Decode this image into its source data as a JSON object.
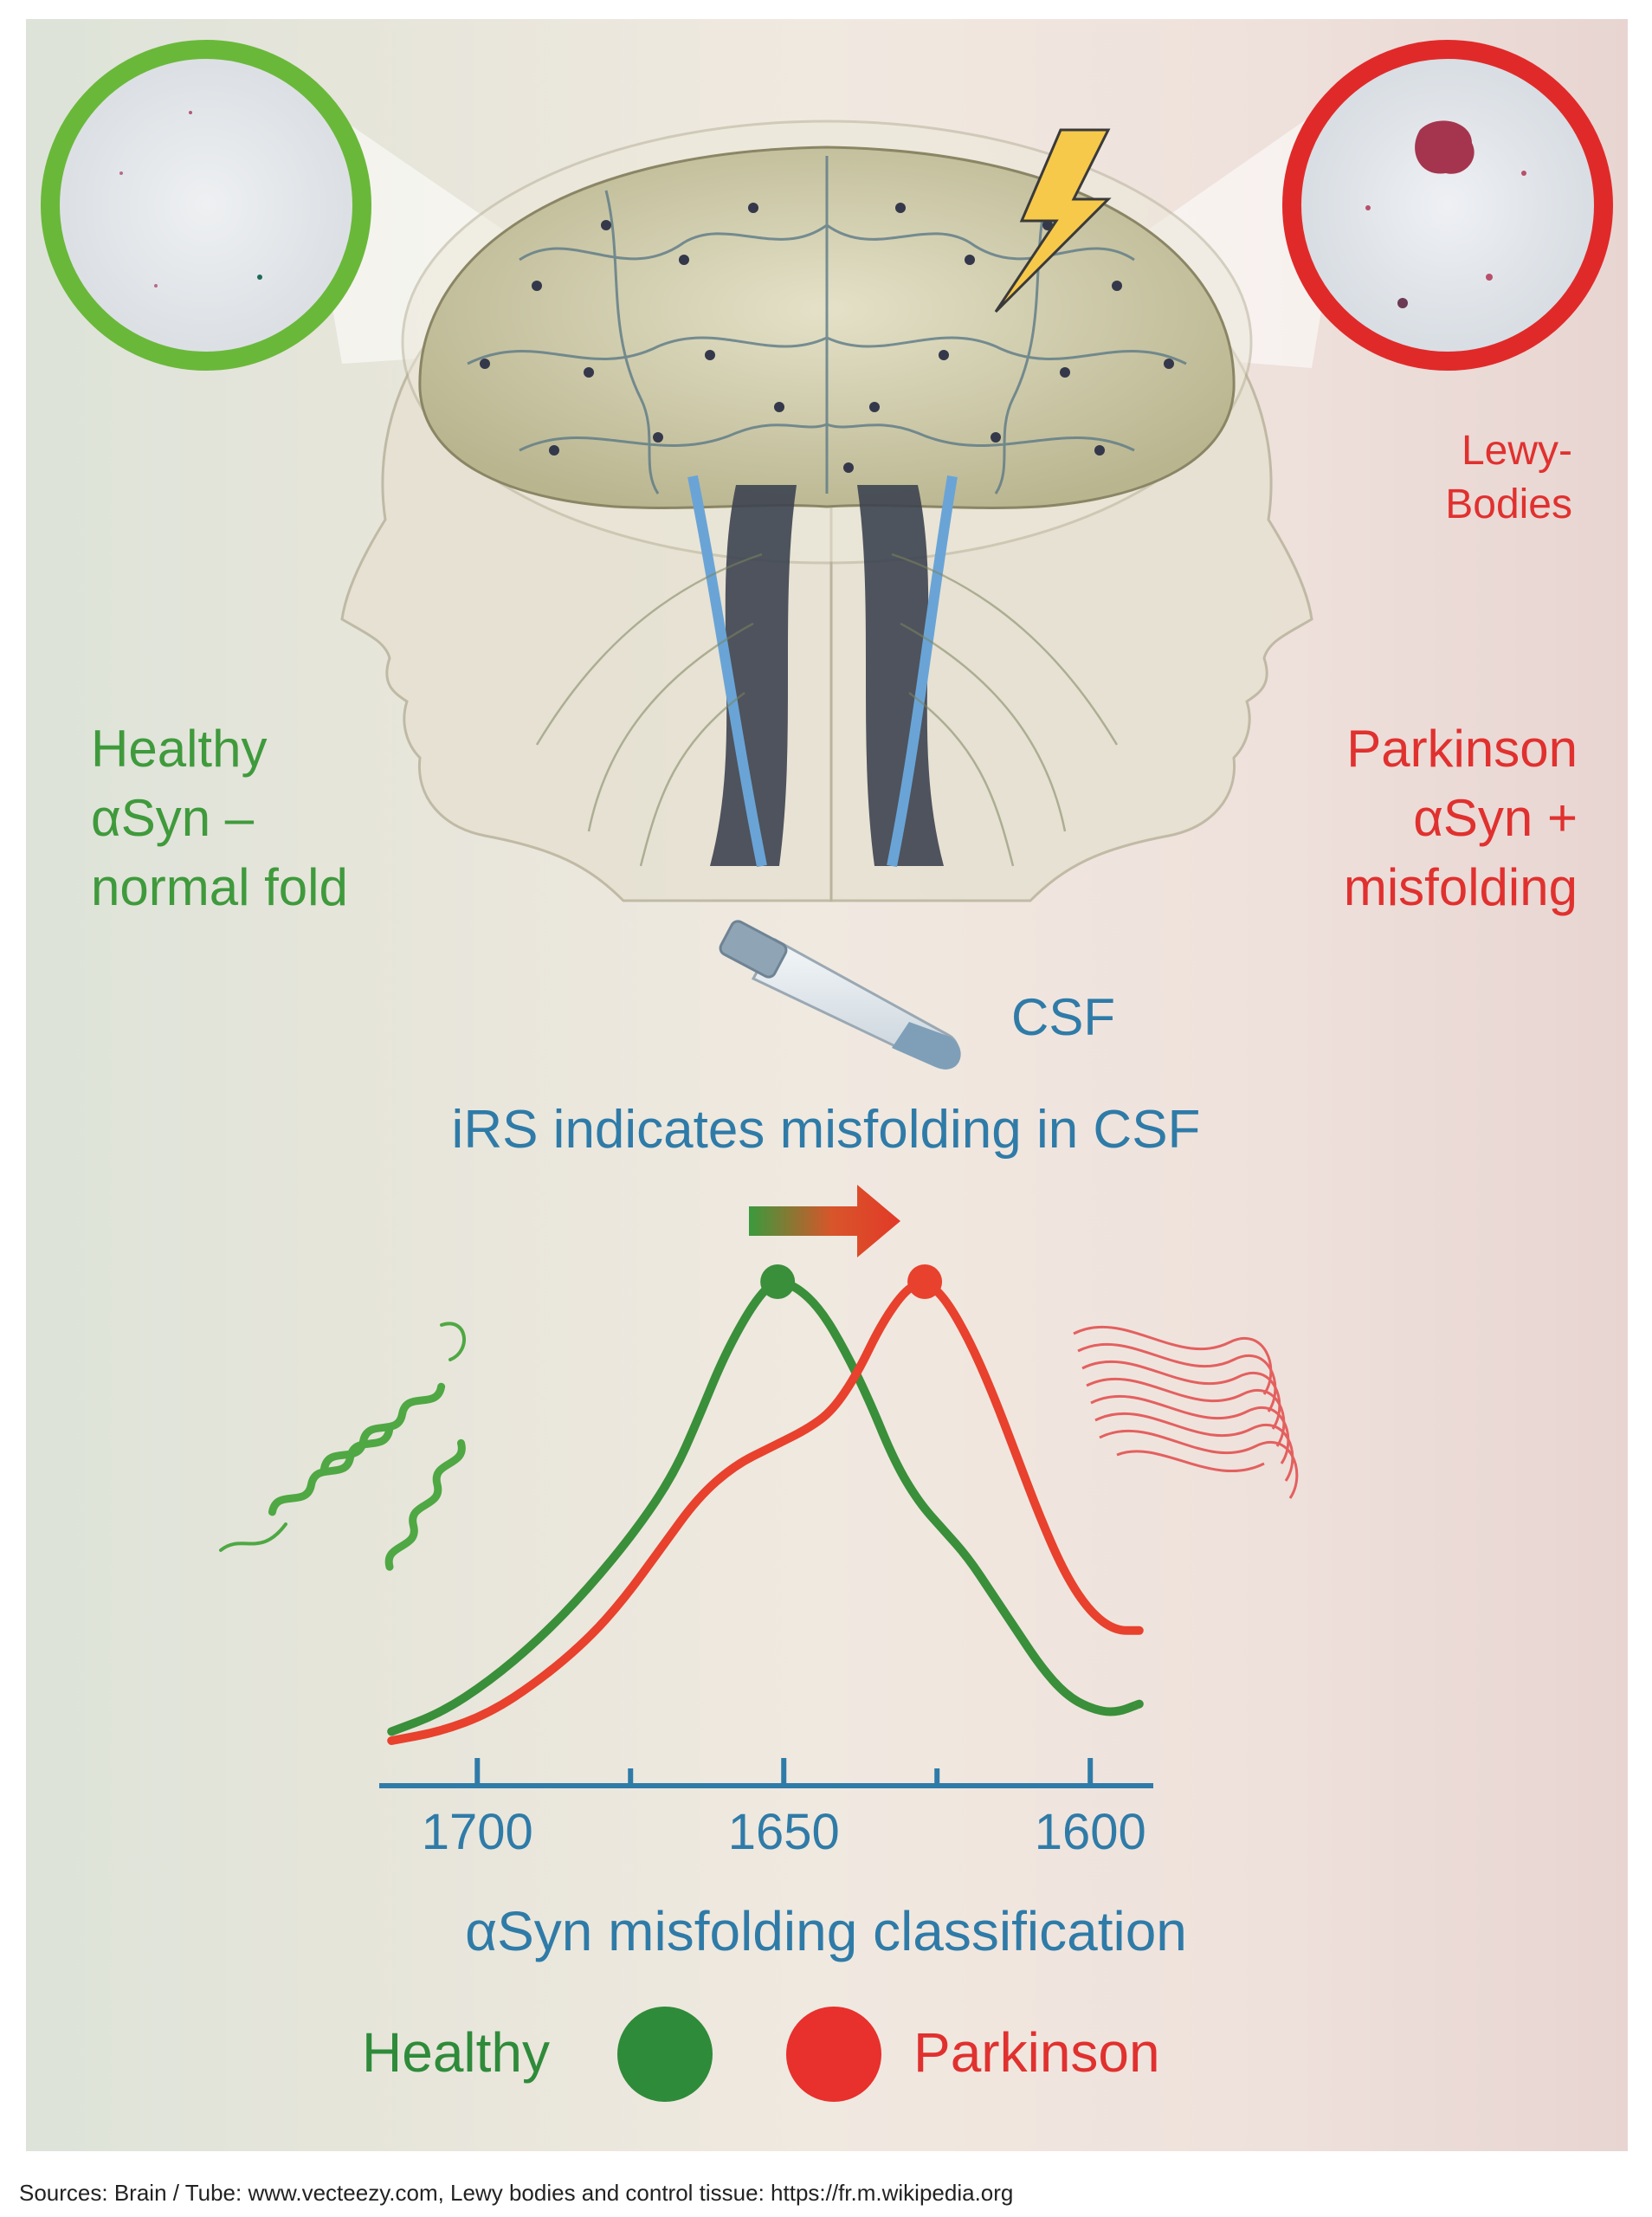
{
  "labels": {
    "healthy_title": [
      "Healthy",
      "αSyn –",
      "normal fold"
    ],
    "parkinson_title": [
      "Parkinson",
      "αSyn +",
      "misfolding"
    ],
    "lewy_bodies": [
      "Lewy-",
      "Bodies"
    ],
    "csf": "CSF",
    "irs_statement": "iRS indicates misfolding in CSF",
    "axis_title": "αSyn misfolding classification",
    "sources": "Sources: Brain / Tube: www.vecteezy.com, Lewy bodies and control tissue: https://fr.m.wikipedia.org"
  },
  "legend": [
    {
      "label": "Healthy",
      "color": "#2e8b3a"
    },
    {
      "label": "Parkinson",
      "color": "#e8302d"
    }
  ],
  "icons": [
    "healthy-tissue-magnifier",
    "lewy-body-tissue-magnifier",
    "head-profiles-brain-illustration",
    "lightning-icon",
    "csf-test-tube-icon",
    "shift-arrow-icon",
    "alpha-helix-protein-icon",
    "misfolded-fibril-protein-icon"
  ],
  "colors": {
    "healthy": "#3f9a3c",
    "parkinson": "#e0312f",
    "axis": "#2f7ba8"
  },
  "chart_data": {
    "type": "line",
    "xlabel": "αSyn misfolding classification",
    "x_ticks": [
      1700,
      1650,
      1600
    ],
    "x_minor_ticks": [
      1675,
      1625
    ],
    "xlim": [
      1716,
      1590
    ],
    "x_reversed": true,
    "series": [
      {
        "name": "Healthy",
        "color": "#3a8f3a",
        "points": [
          [
            1714,
            0.02
          ],
          [
            1706,
            0.06
          ],
          [
            1698,
            0.13
          ],
          [
            1690,
            0.22
          ],
          [
            1682,
            0.33
          ],
          [
            1674,
            0.46
          ],
          [
            1668,
            0.58
          ],
          [
            1664,
            0.7
          ],
          [
            1660,
            0.83
          ],
          [
            1656,
            0.93
          ],
          [
            1653,
            0.985
          ],
          [
            1651,
            1.0
          ],
          [
            1648,
            0.99
          ],
          [
            1644,
            0.94
          ],
          [
            1640,
            0.85
          ],
          [
            1636,
            0.74
          ],
          [
            1632,
            0.61
          ],
          [
            1628,
            0.52
          ],
          [
            1624,
            0.46
          ],
          [
            1620,
            0.4
          ],
          [
            1616,
            0.32
          ],
          [
            1612,
            0.24
          ],
          [
            1608,
            0.16
          ],
          [
            1604,
            0.1
          ],
          [
            1600,
            0.07
          ],
          [
            1596,
            0.06
          ],
          [
            1592,
            0.08
          ]
        ],
        "peak": 1651
      },
      {
        "name": "Parkinson",
        "color": "#e8412d",
        "points": [
          [
            1714,
            0.0
          ],
          [
            1706,
            0.02
          ],
          [
            1698,
            0.06
          ],
          [
            1690,
            0.13
          ],
          [
            1682,
            0.22
          ],
          [
            1676,
            0.31
          ],
          [
            1670,
            0.42
          ],
          [
            1664,
            0.53
          ],
          [
            1658,
            0.6
          ],
          [
            1652,
            0.64
          ],
          [
            1646,
            0.68
          ],
          [
            1642,
            0.72
          ],
          [
            1638,
            0.8
          ],
          [
            1634,
            0.91
          ],
          [
            1630,
            0.985
          ],
          [
            1627,
            1.0
          ],
          [
            1624,
            0.97
          ],
          [
            1620,
            0.88
          ],
          [
            1616,
            0.76
          ],
          [
            1612,
            0.62
          ],
          [
            1608,
            0.48
          ],
          [
            1604,
            0.36
          ],
          [
            1600,
            0.28
          ],
          [
            1596,
            0.24
          ],
          [
            1592,
            0.24
          ]
        ],
        "peak": 1627
      }
    ]
  }
}
